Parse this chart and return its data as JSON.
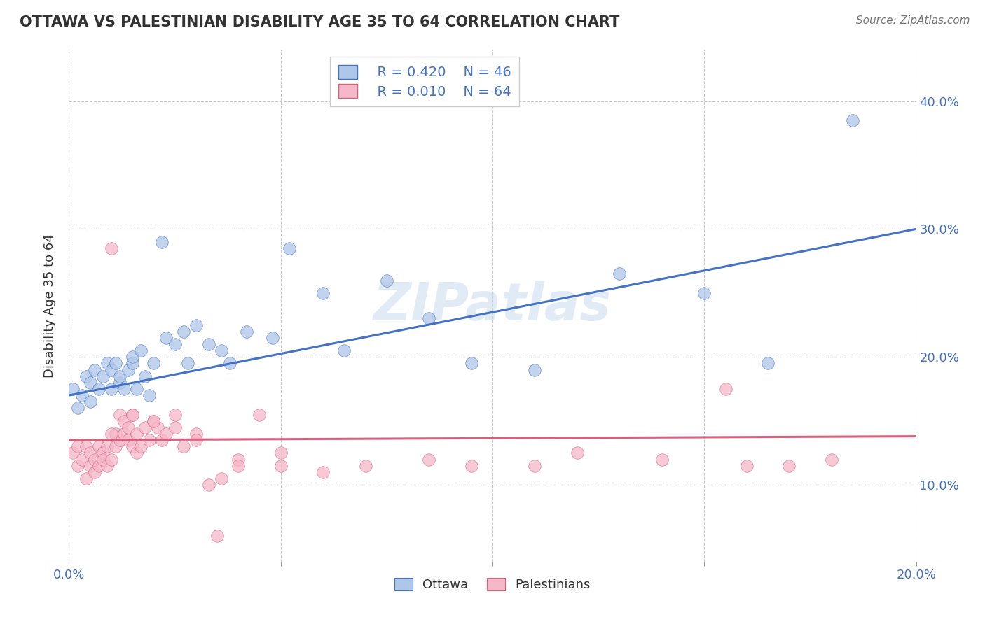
{
  "title": "OTTAWA VS PALESTINIAN DISABILITY AGE 35 TO 64 CORRELATION CHART",
  "source": "Source: ZipAtlas.com",
  "ylabel": "Disability Age 35 to 64",
  "xlim": [
    0.0,
    0.2
  ],
  "ylim": [
    0.04,
    0.44
  ],
  "yticks": [
    0.1,
    0.2,
    0.3,
    0.4
  ],
  "ytick_labels": [
    "10.0%",
    "20.0%",
    "30.0%",
    "40.0%"
  ],
  "xticks": [
    0.0,
    0.05,
    0.1,
    0.15,
    0.2
  ],
  "xtick_labels": [
    "0.0%",
    "",
    "",
    "",
    "20.0%"
  ],
  "background_color": "#ffffff",
  "grid_color": "#c8c8c8",
  "ottawa_color": "#aec6e8",
  "palestinian_color": "#f5b8c8",
  "ottawa_line_color": "#4472c4",
  "palestinian_line_color": "#d95f7f",
  "watermark": "ZIPatlas",
  "ottawa_x": [
    0.001,
    0.002,
    0.003,
    0.004,
    0.005,
    0.005,
    0.006,
    0.007,
    0.008,
    0.009,
    0.01,
    0.01,
    0.011,
    0.012,
    0.012,
    0.013,
    0.014,
    0.015,
    0.015,
    0.016,
    0.017,
    0.018,
    0.019,
    0.02,
    0.022,
    0.023,
    0.025,
    0.027,
    0.028,
    0.03,
    0.033,
    0.036,
    0.038,
    0.042,
    0.048,
    0.052,
    0.06,
    0.065,
    0.075,
    0.085,
    0.095,
    0.11,
    0.13,
    0.15,
    0.165,
    0.185
  ],
  "ottawa_y": [
    0.175,
    0.16,
    0.17,
    0.185,
    0.165,
    0.18,
    0.19,
    0.175,
    0.185,
    0.195,
    0.175,
    0.19,
    0.195,
    0.18,
    0.185,
    0.175,
    0.19,
    0.195,
    0.2,
    0.175,
    0.205,
    0.185,
    0.17,
    0.195,
    0.29,
    0.215,
    0.21,
    0.22,
    0.195,
    0.225,
    0.21,
    0.205,
    0.195,
    0.22,
    0.215,
    0.285,
    0.25,
    0.205,
    0.26,
    0.23,
    0.195,
    0.19,
    0.265,
    0.25,
    0.195,
    0.385
  ],
  "palestinian_x": [
    0.001,
    0.002,
    0.002,
    0.003,
    0.004,
    0.004,
    0.005,
    0.005,
    0.006,
    0.006,
    0.007,
    0.007,
    0.008,
    0.008,
    0.009,
    0.009,
    0.01,
    0.01,
    0.011,
    0.011,
    0.012,
    0.012,
    0.013,
    0.013,
    0.014,
    0.014,
    0.015,
    0.015,
    0.016,
    0.016,
    0.017,
    0.018,
    0.019,
    0.02,
    0.021,
    0.022,
    0.023,
    0.025,
    0.027,
    0.03,
    0.033,
    0.036,
    0.04,
    0.045,
    0.05,
    0.06,
    0.07,
    0.085,
    0.095,
    0.11,
    0.12,
    0.14,
    0.155,
    0.16,
    0.17,
    0.18,
    0.01,
    0.015,
    0.02,
    0.025,
    0.03,
    0.035,
    0.04,
    0.05
  ],
  "palestinian_y": [
    0.125,
    0.115,
    0.13,
    0.12,
    0.105,
    0.13,
    0.115,
    0.125,
    0.12,
    0.11,
    0.13,
    0.115,
    0.125,
    0.12,
    0.13,
    0.115,
    0.12,
    0.285,
    0.13,
    0.14,
    0.135,
    0.155,
    0.14,
    0.15,
    0.135,
    0.145,
    0.13,
    0.155,
    0.14,
    0.125,
    0.13,
    0.145,
    0.135,
    0.15,
    0.145,
    0.135,
    0.14,
    0.155,
    0.13,
    0.14,
    0.1,
    0.105,
    0.12,
    0.155,
    0.125,
    0.11,
    0.115,
    0.12,
    0.115,
    0.115,
    0.125,
    0.12,
    0.175,
    0.115,
    0.115,
    0.12,
    0.14,
    0.155,
    0.15,
    0.145,
    0.135,
    0.06,
    0.115,
    0.115
  ]
}
